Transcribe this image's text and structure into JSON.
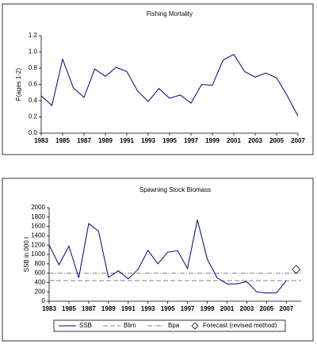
{
  "chart_data": [
    {
      "type": "line",
      "title": "Fishing Mortality",
      "ylabel": "F(ages 1-2)",
      "x": [
        1983,
        1984,
        1985,
        1986,
        1987,
        1988,
        1989,
        1990,
        1991,
        1992,
        1993,
        1994,
        1995,
        1996,
        1997,
        1998,
        1999,
        2000,
        2001,
        2002,
        2003,
        2004,
        2005,
        2006,
        2007
      ],
      "series": [
        {
          "name": "F",
          "color": "#000080",
          "values": [
            0.46,
            0.34,
            0.91,
            0.56,
            0.44,
            0.79,
            0.7,
            0.81,
            0.76,
            0.52,
            0.39,
            0.55,
            0.43,
            0.47,
            0.37,
            0.6,
            0.59,
            0.9,
            0.97,
            0.76,
            0.69,
            0.74,
            0.68,
            0.46,
            0.21
          ]
        }
      ],
      "xlim": [
        1983,
        2007
      ],
      "xticks": [
        1983,
        1985,
        1987,
        1989,
        1991,
        1993,
        1995,
        1997,
        1999,
        2001,
        2003,
        2005,
        2007
      ],
      "ylim": [
        0,
        1.2
      ],
      "yticks": [
        {
          "value": 0,
          "label": "0.0"
        },
        0.2,
        0.4,
        0.6,
        0.8,
        {
          "value": 1,
          "label": "1.0"
        },
        1.2
      ]
    },
    {
      "type": "line",
      "title": "Spawning Stock Biomass",
      "ylabel": "SSB in 000 t",
      "x": [
        1983,
        1984,
        1985,
        1986,
        1987,
        1988,
        1989,
        1990,
        1991,
        1992,
        1993,
        1994,
        1995,
        1996,
        1997,
        1998,
        1999,
        2000,
        2001,
        2002,
        2003,
        2004,
        2005,
        2006,
        2007
      ],
      "series": [
        {
          "name": "SSB",
          "color": "#000080",
          "values": [
            1200,
            780,
            1180,
            500,
            1660,
            1500,
            510,
            650,
            480,
            680,
            1090,
            800,
            1050,
            1080,
            700,
            1740,
            900,
            500,
            370,
            370,
            420,
            200,
            175,
            180,
            440
          ]
        }
      ],
      "ref_lines": [
        {
          "name": "Blim",
          "value": 440,
          "color": "#808080",
          "dash": "6 3"
        },
        {
          "name": "Bpa",
          "value": 600,
          "color": "#808080",
          "dash": "6 2 1 2"
        }
      ],
      "forecast": {
        "name": "Forecast (revised method)",
        "x": 2008,
        "value": 680
      },
      "xlim": [
        1983,
        2008.5
      ],
      "xticks": [
        1983,
        1985,
        1987,
        1989,
        1991,
        1993,
        1995,
        1997,
        1999,
        2001,
        2003,
        2005,
        2007
      ],
      "ylim": [
        0,
        2000
      ],
      "yticks": [
        0,
        200,
        400,
        600,
        800,
        1000,
        1200,
        1400,
        1600,
        1800,
        2000
      ]
    }
  ]
}
